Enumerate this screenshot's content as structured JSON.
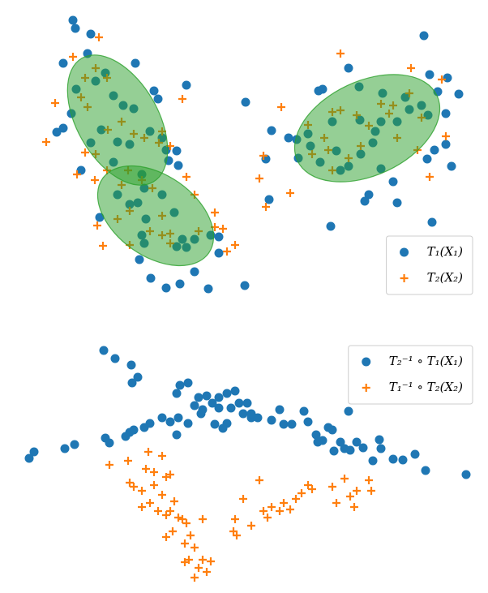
{
  "chart_data": [
    {
      "type": "scatter",
      "xlim": [
        30,
        590
      ],
      "ylim": [
        370,
        10
      ],
      "legend": "lower right",
      "ellipses": [
        {
          "cx": 145,
          "cy": 148,
          "width": 176,
          "height": 100,
          "angle": 60,
          "color": "#2ca02c",
          "alpha": 0.5
        },
        {
          "cx": 192,
          "cy": 266,
          "width": 160,
          "height": 100,
          "angle": 35,
          "color": "#2ca02c",
          "alpha": 0.5
        },
        {
          "cx": 453,
          "cy": 158,
          "width": 190,
          "height": 116,
          "angle": -25,
          "color": "#2ca02c",
          "alpha": 0.5
        }
      ],
      "series": [
        {
          "name": "T₁(X₁)",
          "color": "#1f77b4",
          "marker": "circle",
          "x": [
            90,
            93,
            112,
            108,
            78,
            167,
            94,
            130,
            118,
            140,
            152,
            165,
            88,
            78,
            70,
            125,
            112,
            145,
            160,
            185,
            200,
            205,
            218,
            208,
            195,
            190,
            230,
            220,
            100,
            140,
            175,
            178,
            145,
            160,
            170,
            200,
            215,
            180,
            123,
            175,
            178,
            225,
            240,
            230,
            260,
            270,
            270,
            240,
            172,
            186,
            205,
            222,
            257,
            302,
            303,
            218,
            523,
            430,
            530,
            552,
            398,
            393,
            443,
            472,
            500,
            520,
            566,
            540,
            505,
            528,
            550,
            470,
            463,
            444,
            410,
            380,
            366,
            383,
            415,
            445,
            395,
            420,
            430,
            470,
            490,
            536,
            550,
            527,
            557,
            485,
            455,
            450,
            490,
            533,
            408,
            335,
            356,
            328,
            332,
            368,
            460
          ],
          "values": [
            25,
            35,
            42,
            66,
            78,
            78,
            110,
            90,
            100,
            118,
            130,
            134,
            140,
            158,
            163,
            160,
            176,
            175,
            178,
            162,
            170,
            185,
            186,
            198,
            122,
            112,
            105,
            204,
            210,
            200,
            215,
            232,
            240,
            252,
            250,
            240,
            262,
            270,
            268,
            290,
            300,
            295,
            295,
            305,
            290,
            292,
            312,
            335,
            320,
            343,
            355,
            350,
            356,
            352,
            126,
            304,
            44,
            84,
            92,
            96,
            110,
            112,
            107,
            115,
            120,
            130,
            116,
            113,
            135,
            142,
            140,
            150,
            162,
            148,
            150,
            165,
            172,
            180,
            186,
            190,
            200,
            210,
            205,
            208,
            150,
            185,
            178,
            196,
            205,
            224,
            240,
            248,
            250,
            274,
            279,
            161,
            170,
            196,
            246,
            195,
            176
          ]
        },
        {
          "name": "T₂(X₂)",
          "color": "#ff7f0e",
          "marker": "plus",
          "x": [
            122,
            90,
            105,
            118,
            132,
            100,
            68,
            108,
            150,
            133,
            165,
            178,
            200,
            196,
            210,
            225,
            57,
            105,
            118,
            95,
            132,
            158,
            175,
            230,
            117,
            150,
            188,
            160,
            200,
            185,
            200,
            210,
            245,
            265,
            275,
            290,
            280,
            265,
            127,
            160,
            210,
            240,
            145,
            120,
            420,
            507,
            545,
            347,
            380,
            410,
            420,
            440,
            455,
            470,
            485,
            505,
            520,
            400,
            405,
            385,
            430,
            445,
            490,
            515,
            550,
            530,
            320,
            325,
            358,
            328,
            480,
            410
          ],
          "values": [
            46,
            70,
            96,
            84,
            96,
            120,
            127,
            132,
            150,
            160,
            165,
            170,
            162,
            176,
            180,
            122,
            175,
            188,
            190,
            215,
            210,
            210,
            222,
            218,
            222,
            228,
            232,
            260,
            266,
            285,
            290,
            288,
            285,
            280,
            282,
            302,
            310,
            262,
            303,
            302,
            300,
            240,
            270,
            278,
            66,
            84,
            98,
            132,
            154,
            138,
            136,
            142,
            155,
            128,
            130,
            115,
            145,
            170,
            185,
            190,
            195,
            180,
            170,
            185,
            168,
            218,
            220,
            192,
            238,
            255,
            140,
            210
          ]
        }
      ]
    },
    {
      "type": "scatter",
      "xlim": [
        30,
        590
      ],
      "ylim": [
        725,
        420
      ],
      "legend": "upper right",
      "series": [
        {
          "name": "T₂⁻¹ ∘ T₁(X₁)",
          "color": "#1f77b4",
          "marker": "circle",
          "x": [
            128,
            142,
            162,
            170,
            163,
            222,
            232,
            218,
            245,
            255,
            262,
            270,
            280,
            290,
            295,
            270,
            285,
            300,
            310,
            318,
            240,
            248,
            250,
            200,
            210,
            220,
            185,
            178,
            165,
            155,
            160,
            130,
            135,
            92,
            80,
            42,
            36,
            232,
            218,
            265,
            280,
            275,
            335,
            345,
            350,
            360,
            375,
            380,
            390,
            405,
            410,
            398,
            392,
            430,
            420,
            425,
            440,
            448,
            412,
            432,
            468,
            470,
            460,
            485,
            497,
            512,
            525,
            575,
            305,
            310
          ],
          "values": [
            432,
            442,
            450,
            465,
            472,
            475,
            472,
            485,
            490,
            488,
            497,
            490,
            485,
            482,
            497,
            503,
            503,
            510,
            515,
            515,
            500,
            510,
            505,
            515,
            520,
            515,
            522,
            527,
            530,
            538,
            533,
            540,
            546,
            548,
            553,
            557,
            565,
            522,
            536,
            523,
            522,
            528,
            518,
            505,
            523,
            523,
            507,
            520,
            536,
            527,
            530,
            543,
            545,
            507,
            545,
            553,
            545,
            552,
            556,
            555,
            542,
            553,
            568,
            566,
            567,
            560,
            580,
            585,
            497,
            510
          ]
        },
        {
          "name": "T₁⁻¹ ∘ T₂(X₂)",
          "color": "#ff7f0e",
          "marker": "plus",
          "x": [
            183,
            200,
            158,
            180,
            190,
            205,
            210,
            135,
            160,
            165,
            175,
            190,
            200,
            215,
            185,
            175,
            195,
            205,
            210,
            220,
            225,
            230,
            213,
            205,
            235,
            228,
            240,
            233,
            228,
            250,
            260,
            245,
            240,
            255,
            250,
            290,
            288,
            292,
            300,
            320,
            325,
            330,
            335,
            345,
            350,
            358,
            365,
            372,
            380,
            385,
            410,
            415,
            425,
            432,
            440,
            455,
            458,
            437,
            310
          ],
          "values": [
            557,
            562,
            568,
            578,
            582,
            588,
            585,
            573,
            595,
            600,
            605,
            598,
            610,
            618,
            620,
            625,
            630,
            635,
            630,
            638,
            640,
            645,
            655,
            662,
            660,
            670,
            675,
            690,
            693,
            690,
            692,
            700,
            712,
            705,
            640,
            640,
            655,
            660,
            615,
            592,
            630,
            638,
            625,
            630,
            620,
            628,
            615,
            608,
            598,
            603,
            600,
            620,
            590,
            612,
            605,
            592,
            605,
            625,
            648
          ]
        }
      ]
    }
  ]
}
